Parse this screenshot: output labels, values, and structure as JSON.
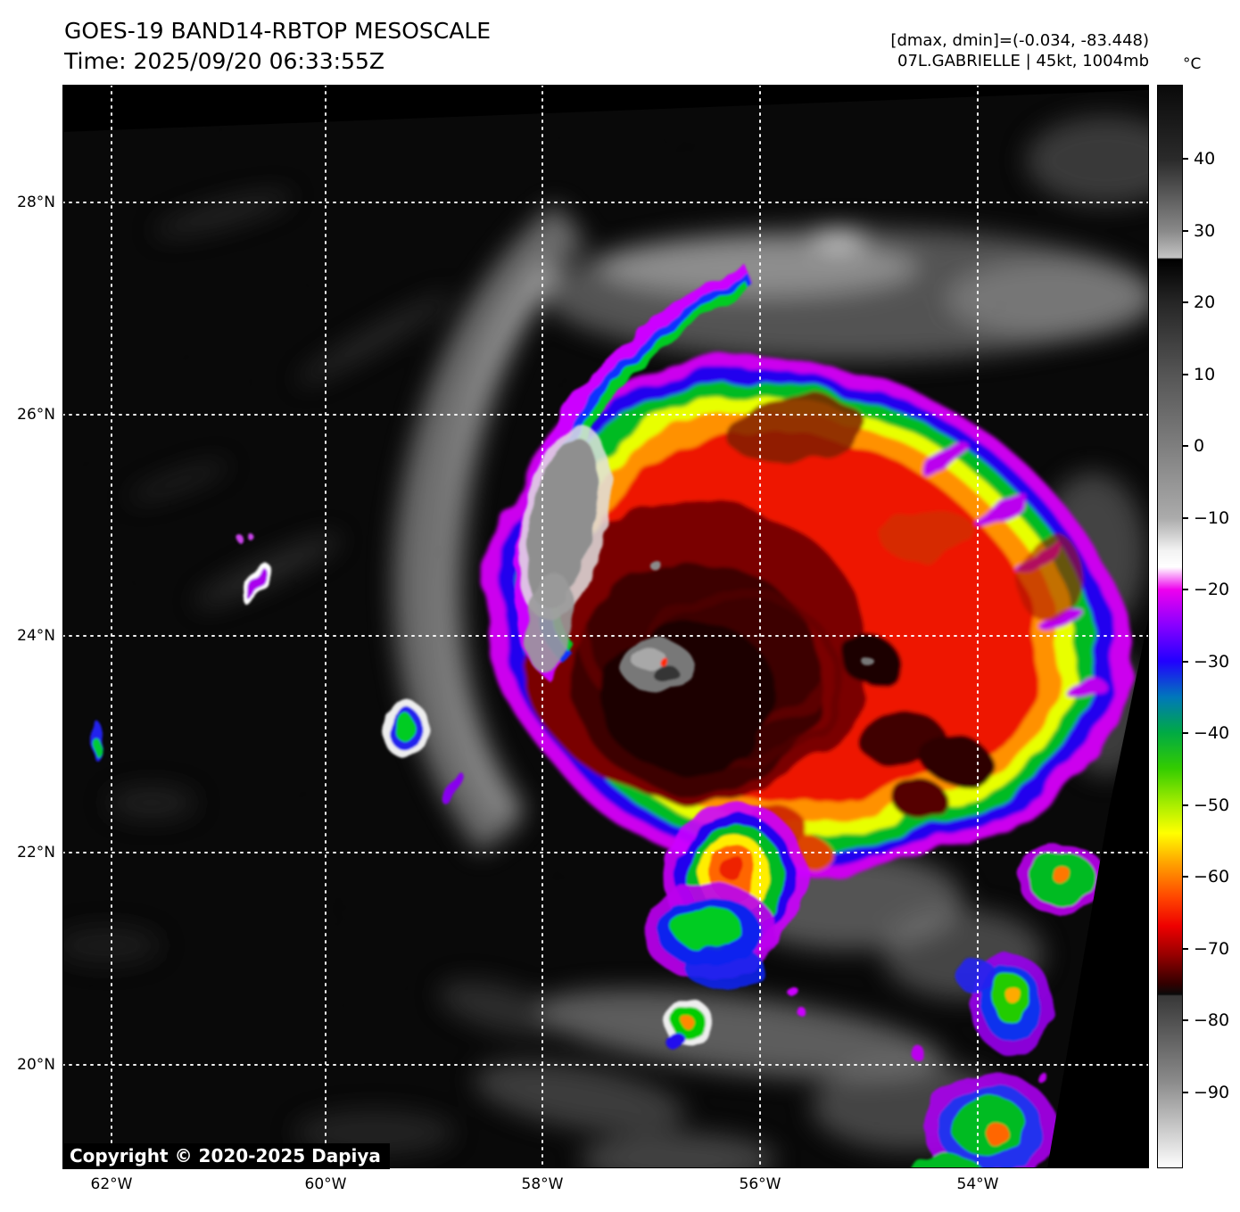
{
  "header": {
    "title": "GOES-19 BAND14-RBTOP MESOSCALE",
    "time": "Time: 2025/09/20 06:33:55Z",
    "range_info": "[dmax, dmin]=(-0.034, -83.448)",
    "storm_info": "07L.GABRIELLE | 45kt, 1004mb"
  },
  "colorbar": {
    "unit": "°C",
    "tick_labels": [
      "40",
      "30",
      "20",
      "10",
      "0",
      "−10",
      "−20",
      "−30",
      "−40",
      "−50",
      "−60",
      "−70",
      "−80",
      "−90"
    ]
  },
  "axes": {
    "lat_labels": [
      "28°N",
      "26°N",
      "24°N",
      "22°N",
      "20°N"
    ],
    "lon_labels": [
      "62°W",
      "60°W",
      "58°W",
      "56°W",
      "54°W"
    ]
  },
  "overlay": {
    "copyright": "Copyright © 2020-2025 Dapiya"
  },
  "colors": {
    "gridline": "#ffffff",
    "frame": "#000000",
    "page_background": "#ffffff"
  }
}
